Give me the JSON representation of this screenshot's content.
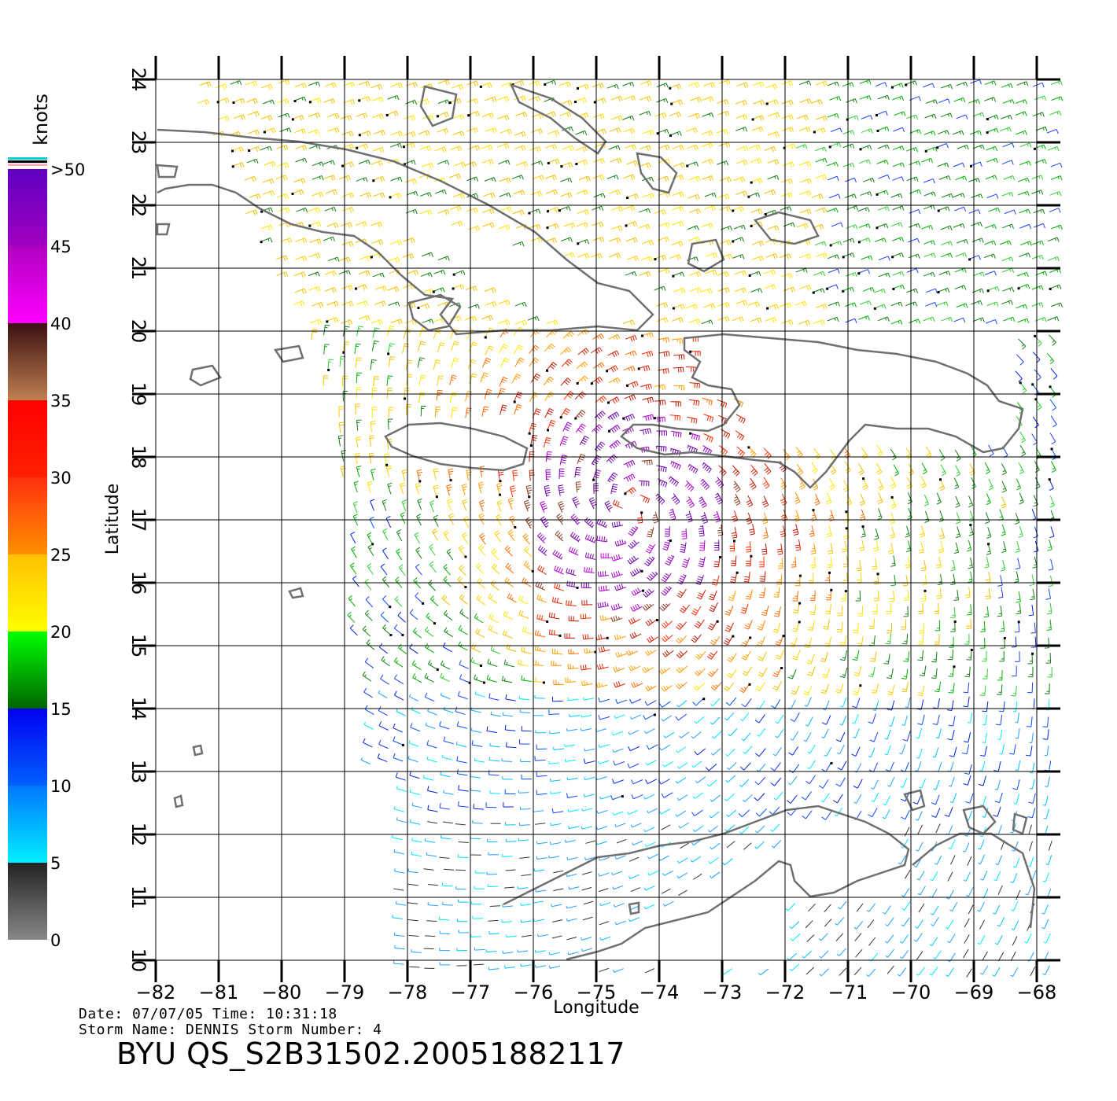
{
  "map": {
    "xlabel": "Longitude",
    "ylabel": "Latitude",
    "lon_range": [
      -82,
      -68
    ],
    "lat_range": [
      10,
      24
    ],
    "lon_ticks": [
      "-82",
      "-81",
      "-80",
      "-79",
      "-78",
      "-77",
      "-76",
      "-75",
      "-74",
      "-73",
      "-72",
      "-71",
      "-70",
      "-69",
      "-68"
    ],
    "lat_ticks": [
      "10",
      "11",
      "12",
      "13",
      "14",
      "15",
      "16",
      "17",
      "18",
      "19",
      "20",
      "21",
      "22",
      "23",
      "24"
    ],
    "grid": true,
    "coastline_color": "#707070",
    "storm_center": {
      "lon": -74.5,
      "lat": 17.2
    }
  },
  "legend": {
    "unit": "knots",
    "labels": [
      "0",
      "5",
      "10",
      "15",
      "20",
      "25",
      "30",
      "35",
      "40",
      "45",
      ">50"
    ],
    "bands": [
      {
        "range": "0-5",
        "color": "#888888",
        "color_top": "#222222"
      },
      {
        "range": "5-10",
        "color": "#00eeff",
        "color_top": "#0077ff"
      },
      {
        "range": "10-15",
        "color": "#0060ff",
        "color_top": "#0000ee"
      },
      {
        "range": "15-20",
        "color": "#006400",
        "color_top": "#00ff00"
      },
      {
        "range": "20-25",
        "color": "#ffff00",
        "color_top": "#ffc000"
      },
      {
        "range": "25-30",
        "color": "#ff9000",
        "color_top": "#ff3010"
      },
      {
        "range": "30-35",
        "color": "#ff2000",
        "color_top": "#ff0000"
      },
      {
        "range": "35-40",
        "color": "#c08050",
        "color_top": "#3a1010"
      },
      {
        "range": "40-45",
        "color": "#ff00ff",
        "color_top": "#b000c0"
      },
      {
        "range": "45-50",
        "color": "#a000c0",
        "color_top": "#6000c0"
      }
    ]
  },
  "info": {
    "line1": "Date: 07/07/05   Time: 10:31:18",
    "line2": "Storm Name: DENNIS   Storm Number: 4",
    "file_id": "BYU QS_S2B31502.20051882117"
  }
}
